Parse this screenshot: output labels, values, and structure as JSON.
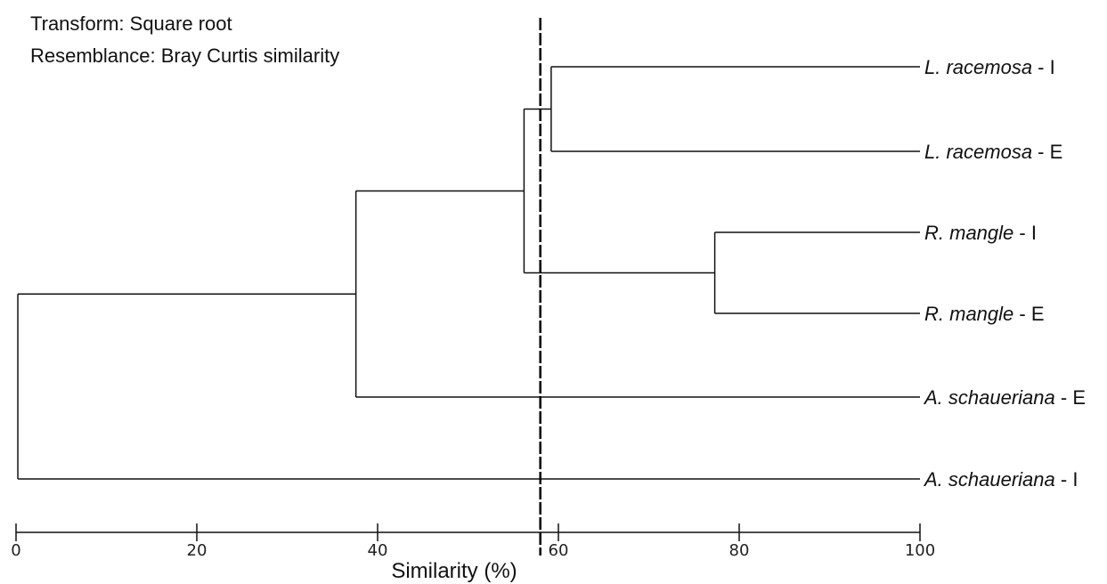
{
  "header": {
    "transform": "Transform: Square root",
    "resemblance": "Resemblance: Bray Curtis similarity"
  },
  "leaves": [
    {
      "species": "L. racemosa",
      "site": "I"
    },
    {
      "species": "L. racemosa",
      "site": "E"
    },
    {
      "species": "R. mangle",
      "site": "I"
    },
    {
      "species": "R. mangle",
      "site": "E"
    },
    {
      "species": "A. schaueriana",
      "site": "E"
    },
    {
      "species": "A. schaueriana",
      "site": "I"
    }
  ],
  "merges": [
    {
      "left": [
        0
      ],
      "right": [
        1
      ],
      "similarity": 59.2
    },
    {
      "left": [
        2
      ],
      "right": [
        3
      ],
      "similarity": 77.3
    },
    {
      "left": [
        0,
        1
      ],
      "right": [
        2,
        3
      ],
      "similarity": 56.2
    },
    {
      "left": [
        0,
        1,
        2,
        3
      ],
      "right": [
        4
      ],
      "similarity": 37.6
    },
    {
      "left": [
        0,
        1,
        2,
        3,
        4
      ],
      "right": [
        5
      ],
      "similarity": 0.2
    }
  ],
  "cut_line_similarity": 58,
  "axis": {
    "title": "Similarity (%)",
    "min": 0,
    "max": 100,
    "ticks": [
      "0",
      "20",
      "40",
      "60",
      "80",
      "100"
    ]
  }
}
